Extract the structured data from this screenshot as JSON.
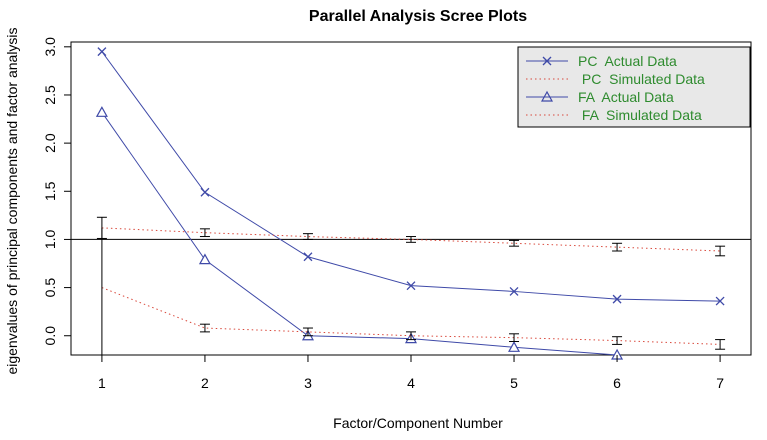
{
  "chart_data": {
    "type": "line",
    "title": "Parallel Analysis Scree Plots",
    "xlabel": "Factor/Component Number",
    "ylabel": "eigenvalues of principal components and factor analysis",
    "x": [
      1,
      2,
      3,
      4,
      5,
      6,
      7
    ],
    "xlim": [
      0.7,
      7.3
    ],
    "ylim": [
      -0.2,
      3.05
    ],
    "yticks": [
      0.0,
      0.5,
      1.0,
      1.5,
      2.0,
      2.5,
      3.0
    ],
    "ytick_labels": [
      "0.0",
      "0.5",
      "1.0",
      "1.5",
      "2.0",
      "2.5",
      "3.0"
    ],
    "xtick_labels": [
      "1",
      "2",
      "3",
      "4",
      "5",
      "6",
      "7"
    ],
    "reference_line": 1.0,
    "legend_position": "top-right",
    "series": [
      {
        "name": "PC  Actual Data",
        "values": [
          2.95,
          1.49,
          0.82,
          0.52,
          0.46,
          0.38,
          0.36
        ],
        "marker": "x",
        "style": "solid",
        "color": "#3f4aa8"
      },
      {
        "name": " PC  Simulated Data",
        "values": [
          1.12,
          1.07,
          1.03,
          1.0,
          0.96,
          0.92,
          0.88
        ],
        "marker": "errorbar",
        "style": "dotted",
        "color": "#d9483b",
        "errors": [
          0.11,
          0.04,
          0.03,
          0.03,
          0.03,
          0.04,
          0.05
        ]
      },
      {
        "name": "FA  Actual Data",
        "values": [
          2.32,
          0.79,
          0.0,
          -0.03,
          -0.12,
          -0.2,
          null
        ],
        "marker": "triangle",
        "style": "solid",
        "color": "#3f4aa8"
      },
      {
        "name": " FA  Simulated Data",
        "values": [
          0.5,
          0.08,
          0.04,
          0.0,
          -0.02,
          -0.05,
          -0.09
        ],
        "marker": "errorbar",
        "style": "dotted",
        "color": "#d9483b",
        "errors": [
          null,
          0.04,
          0.04,
          0.04,
          0.04,
          0.04,
          0.05
        ]
      }
    ],
    "colors": {
      "legend_text": "#2e8b2e",
      "legend_bg": "#e8e8e8",
      "errorbar": "#000000"
    }
  }
}
